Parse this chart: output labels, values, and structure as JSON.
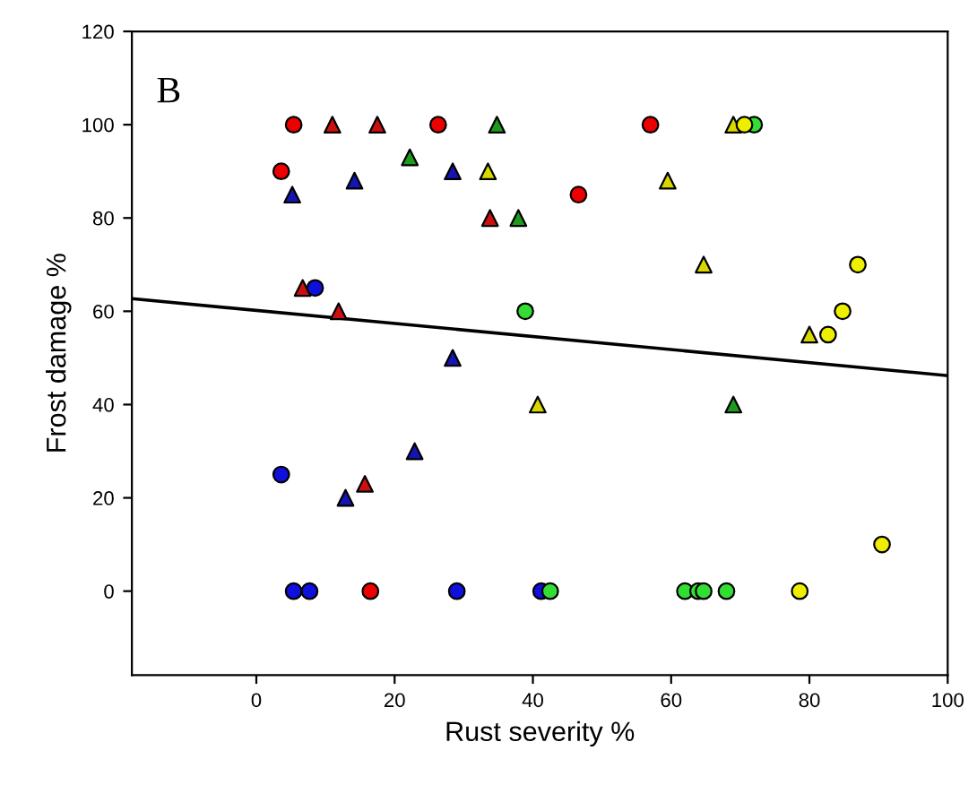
{
  "chart_data": {
    "type": "scatter",
    "xlabel": "Rust severity %",
    "ylabel": "Frost damage %",
    "annotations": [
      "B"
    ],
    "xlim": [
      -18,
      100
    ],
    "xticks": [
      0,
      20,
      40,
      60,
      80,
      100
    ],
    "ylim": [
      -18,
      120
    ],
    "yticks": [
      0,
      20,
      40,
      60,
      80,
      100,
      120
    ],
    "grid": false,
    "legend": false,
    "series": [
      {
        "marker": "circle",
        "color": "#ee0000",
        "x": [
          5.4,
          26.3,
          57,
          3.6,
          46.6,
          16.5
        ],
        "values": [
          100,
          100,
          100,
          90,
          85,
          0
        ]
      },
      {
        "marker": "triangle",
        "color": "#cc1010",
        "x": [
          11,
          17.5,
          6.7,
          11.9,
          33.8,
          15.7
        ],
        "values": [
          100,
          100,
          65,
          60,
          80,
          23
        ]
      },
      {
        "marker": "circle",
        "color": "#1010dd",
        "x": [
          8.5,
          3.6,
          5.4,
          7.7,
          29,
          41.2
        ],
        "values": [
          65,
          25,
          0,
          0,
          0,
          0
        ]
      },
      {
        "marker": "triangle",
        "color": "#1515b0",
        "x": [
          5.2,
          14.2,
          28.4,
          28.4,
          12.9,
          22.9
        ],
        "values": [
          85,
          88,
          90,
          50,
          20,
          30
        ]
      },
      {
        "marker": "triangle",
        "color": "#1f9a1f",
        "x": [
          34.8,
          22.2,
          37.9,
          69
        ],
        "values": [
          100,
          93,
          80,
          40
        ]
      },
      {
        "marker": "circle",
        "color": "#33dd33",
        "x": [
          72,
          38.9,
          42.5,
          62,
          63.9,
          64.7,
          68
        ],
        "values": [
          100,
          60,
          0,
          0,
          0,
          0,
          0
        ]
      },
      {
        "marker": "triangle",
        "color": "#d8d800",
        "x": [
          33.5,
          69,
          59.5,
          64.7,
          40.7,
          80
        ],
        "values": [
          90,
          100,
          88,
          70,
          40,
          55
        ]
      },
      {
        "marker": "circle",
        "color": "#eeee00",
        "x": [
          70.6,
          87,
          84.8,
          82.7,
          78.6,
          90.5
        ],
        "values": [
          100,
          70,
          60,
          55,
          0,
          10
        ]
      },
      {
        "type": "line",
        "color": "#000000",
        "x": [
          -18,
          100
        ],
        "values": [
          62.7,
          46.2
        ]
      }
    ]
  }
}
